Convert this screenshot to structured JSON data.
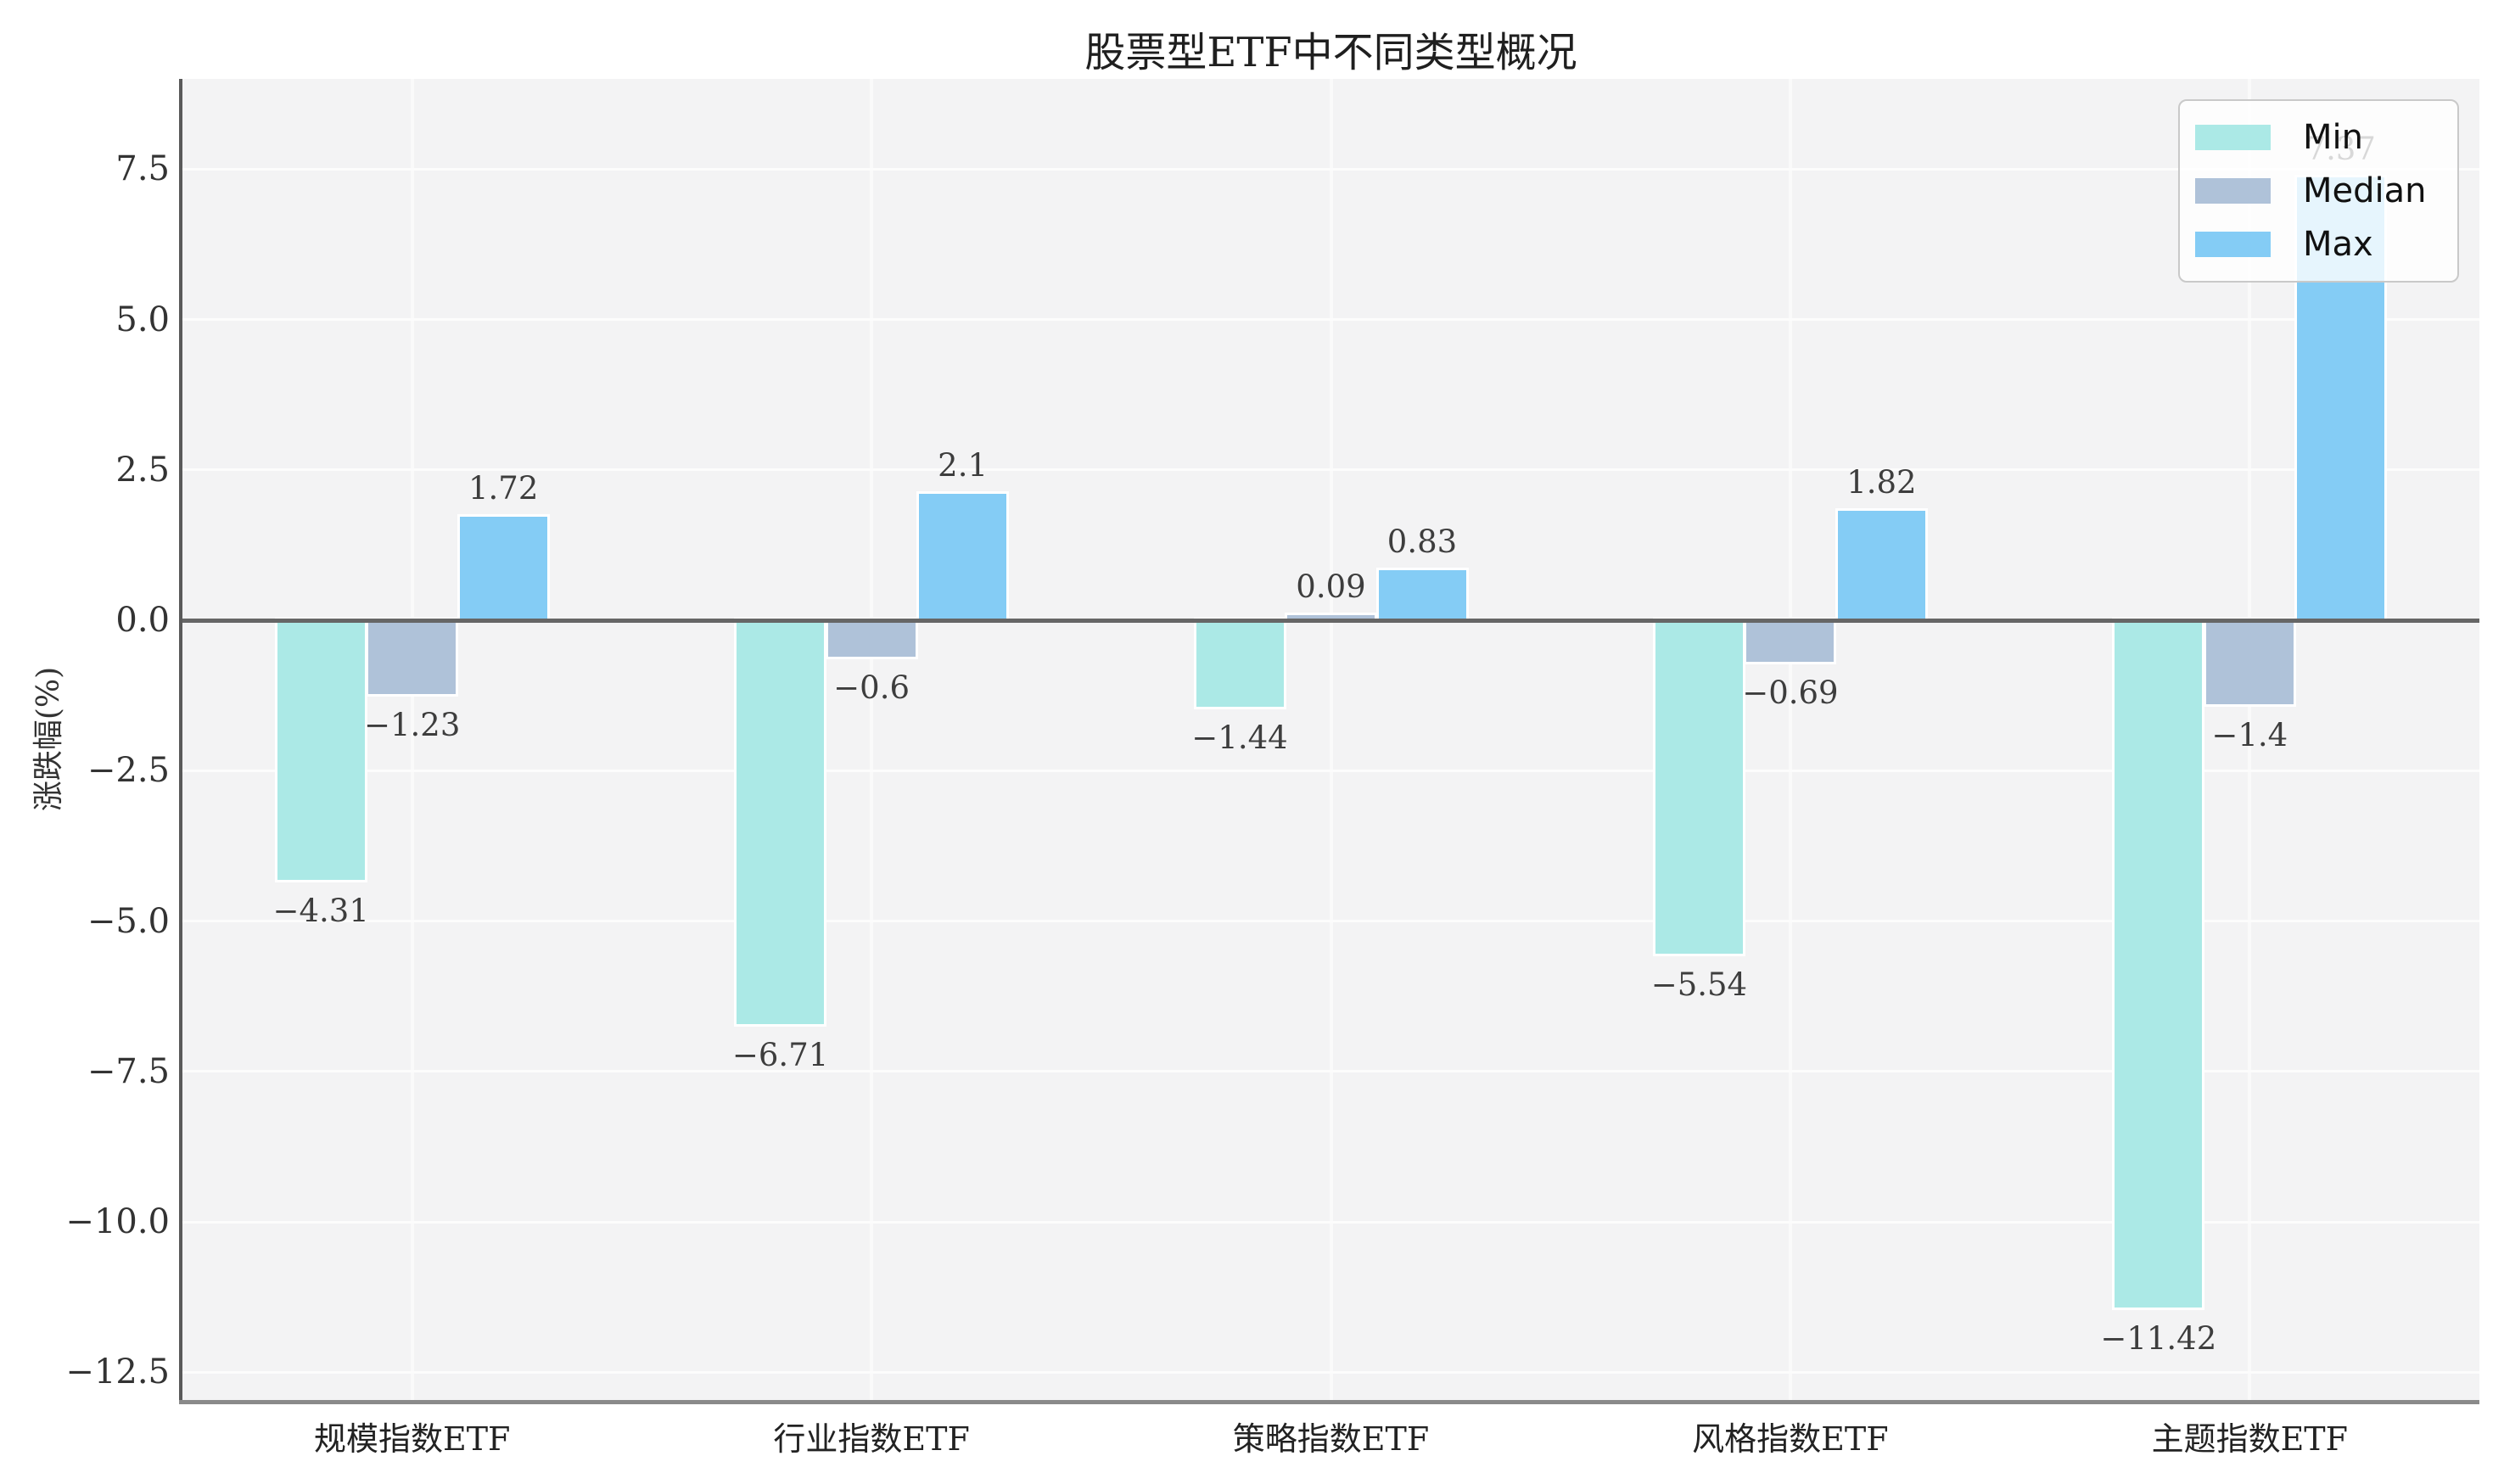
{
  "chart_data": {
    "type": "bar",
    "title": "股票型ETF中不同类型概况",
    "xlabel": "",
    "ylabel": "涨跌幅(%)",
    "categories": [
      "规模指数ETF",
      "行业指数ETF",
      "策略指数ETF",
      "风格指数ETF",
      "主题指数ETF"
    ],
    "series": [
      {
        "name": "Min",
        "color": "#abe9e6",
        "values": [
          -4.31,
          -6.71,
          -1.44,
          -5.54,
          -11.42
        ],
        "labels": [
          "−4.31",
          "−6.71",
          "−1.44",
          "−5.54",
          "−11.42"
        ]
      },
      {
        "name": "Median",
        "color": "#afc2d9",
        "values": [
          -1.23,
          -0.6,
          0.09,
          -0.69,
          -1.4
        ],
        "labels": [
          "−1.23",
          "−0.6",
          "0.09",
          "−0.69",
          "−1.4"
        ]
      },
      {
        "name": "Max",
        "color": "#84ccf5",
        "values": [
          1.72,
          2.1,
          0.83,
          1.82,
          7.37
        ],
        "labels": [
          "1.72",
          "2.1",
          "0.83",
          "1.82",
          "7.37"
        ]
      }
    ],
    "yticks": {
      "values": [
        7.5,
        5.0,
        2.5,
        0.0,
        -2.5,
        -5.0,
        -7.5,
        -10.0,
        -12.5
      ],
      "labels": [
        "7.5",
        "5.0",
        "2.5",
        "0.0",
        "−2.5",
        "−5.0",
        "−7.5",
        "−10.0",
        "−12.5"
      ]
    },
    "ylim": [
      -12.96,
      9.0
    ],
    "grid": true,
    "legend": {
      "position": "upper right",
      "entries": [
        "Min",
        "Median",
        "Max"
      ]
    },
    "colors": {
      "figure_bg": "#ffffff",
      "plot_bg": "#f3f3f4",
      "grid_h": "#fcfcfc",
      "grid_v": "#fafafa",
      "zero_line": "#666666",
      "left_spine": "#5a5a5a",
      "bottom_spine": "#8a8a8a",
      "title_text": "#1f1f1f",
      "tick_text": "#333333",
      "data_label_text": "#3d3d3d",
      "legend_text": "#111111",
      "legend_border": "#c9c9c9"
    }
  }
}
